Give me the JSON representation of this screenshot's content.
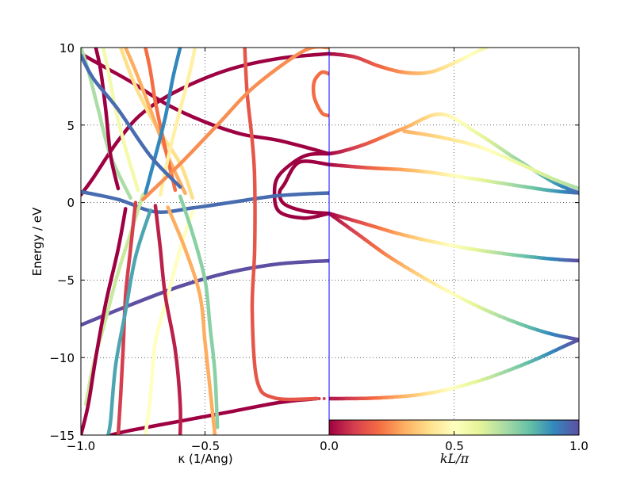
{
  "chart_data": {
    "type": "line",
    "description_of_panels": "two panels sharing energy axis",
    "ylabel": "Energy / eV",
    "ylim": [
      -15,
      10
    ],
    "yticks": [
      "10",
      "5",
      "0",
      "−5",
      "−10",
      "−15"
    ],
    "grid": true,
    "left_panel": {
      "xlabel": "κ (1/Ang)",
      "xlim": [
        -1.0,
        0.0
      ],
      "xticks": [
        "−1.0",
        "−0.5",
        "0.0"
      ]
    },
    "right_panel": {
      "xlabel": "kL/π",
      "xlim": [
        0.0,
        1.0
      ],
      "xticks": [
        "0.0",
        "0.5",
        "1.0"
      ]
    },
    "colorbar": {
      "colormap": "Spectral",
      "range": [
        0.0,
        1.0
      ],
      "colors": [
        "#9e0142",
        "#d53e4f",
        "#f46d43",
        "#fdae61",
        "#fee08b",
        "#ffffbf",
        "#e6f598",
        "#abdda4",
        "#66c2a5",
        "#3288bd",
        "#5e4fa2"
      ]
    },
    "right_series": [
      {
        "c0": 0.0,
        "c1": 0.95,
        "points": [
          [
            0.0,
            2.45
          ],
          [
            0.15,
            2.25
          ],
          [
            0.35,
            2.05
          ],
          [
            0.55,
            1.6
          ],
          [
            0.75,
            1.1
          ],
          [
            0.9,
            0.75
          ],
          [
            1.0,
            0.62
          ]
        ]
      },
      {
        "c0": 0.0,
        "c1": 0.95,
        "points": [
          [
            0.0,
            3.15
          ],
          [
            0.05,
            3.3
          ],
          [
            0.15,
            3.8
          ],
          [
            0.3,
            4.8
          ],
          [
            0.45,
            5.7
          ],
          [
            0.6,
            4.4
          ],
          [
            0.75,
            2.8
          ],
          [
            0.9,
            1.3
          ],
          [
            1.0,
            0.62
          ]
        ]
      },
      {
        "c0": 0.0,
        "c1": 1.0,
        "points": [
          [
            0.0,
            -0.7
          ],
          [
            0.15,
            -1.4
          ],
          [
            0.3,
            -2.1
          ],
          [
            0.5,
            -2.8
          ],
          [
            0.7,
            -3.3
          ],
          [
            0.9,
            -3.65
          ],
          [
            1.0,
            -3.75
          ]
        ]
      },
      {
        "c0": 0.0,
        "c1": 1.0,
        "points": [
          [
            0.0,
            -0.7
          ],
          [
            0.12,
            -2.1
          ],
          [
            0.25,
            -3.6
          ],
          [
            0.45,
            -5.5
          ],
          [
            0.65,
            -7.1
          ],
          [
            0.85,
            -8.3
          ],
          [
            1.0,
            -8.85
          ]
        ]
      },
      {
        "c0": 0.0,
        "c1": 1.0,
        "points": [
          [
            0.0,
            -12.65
          ],
          [
            0.2,
            -12.6
          ],
          [
            0.4,
            -12.3
          ],
          [
            0.6,
            -11.5
          ],
          [
            0.8,
            -10.3
          ],
          [
            0.95,
            -9.2
          ],
          [
            1.0,
            -8.85
          ]
        ]
      },
      {
        "c0": 0.0,
        "c1": 0.55,
        "points": [
          [
            0.0,
            9.6
          ],
          [
            0.1,
            9.4
          ],
          [
            0.2,
            8.8
          ],
          [
            0.3,
            8.4
          ],
          [
            0.4,
            8.4
          ],
          [
            0.5,
            9.0
          ],
          [
            0.6,
            9.8
          ],
          [
            0.63,
            10.0
          ]
        ]
      },
      {
        "c0": 0.3,
        "c1": 0.7,
        "points": [
          [
            0.3,
            4.6
          ],
          [
            0.45,
            4.2
          ],
          [
            0.6,
            3.6
          ],
          [
            0.75,
            2.6
          ],
          [
            0.9,
            1.5
          ],
          [
            1.0,
            0.9
          ]
        ]
      }
    ],
    "left_series": [
      {
        "c": 0.0,
        "points": [
          [
            0.0,
            2.45
          ],
          [
            -0.12,
            2.6
          ],
          [
            -0.18,
            1.2
          ],
          [
            -0.2,
            0.6
          ],
          [
            -0.18,
            -0.1
          ],
          [
            -0.1,
            -0.55
          ],
          [
            0.0,
            -0.7
          ]
        ]
      },
      {
        "c": 0.0,
        "points": [
          [
            0.0,
            3.15
          ],
          [
            -0.1,
            3.0
          ],
          [
            -0.2,
            1.8
          ],
          [
            -0.22,
            0.6
          ],
          [
            -0.2,
            -0.6
          ],
          [
            -0.1,
            -1.0
          ],
          [
            0.0,
            -0.7
          ]
        ]
      },
      {
        "c": 0.0,
        "points": [
          [
            0.0,
            9.6
          ],
          [
            -0.2,
            9.3
          ],
          [
            -0.4,
            8.6
          ],
          [
            -0.6,
            7.3
          ],
          [
            -0.75,
            5.8
          ],
          [
            -0.85,
            4.0
          ],
          [
            -0.95,
            1.6
          ],
          [
            -1.0,
            0.5
          ]
        ]
      },
      {
        "c": 0.0,
        "points": [
          [
            0.0,
            3.15
          ],
          [
            -0.2,
            4.0
          ],
          [
            -0.35,
            4.4
          ],
          [
            -0.5,
            5.2
          ],
          [
            -0.65,
            6.3
          ],
          [
            -0.8,
            7.8
          ],
          [
            -0.9,
            8.7
          ],
          [
            -1.0,
            9.6
          ]
        ]
      },
      {
        "c": 0.0,
        "points": [
          [
            -0.05,
            -12.65
          ],
          [
            -0.2,
            -12.9
          ],
          [
            -0.4,
            -13.5
          ],
          [
            -0.6,
            -14.1
          ],
          [
            -0.8,
            -14.7
          ],
          [
            -0.88,
            -15.0
          ]
        ]
      },
      {
        "c": 0.95,
        "points": [
          [
            0.0,
            0.62
          ],
          [
            -0.2,
            0.45
          ],
          [
            -0.4,
            0.0
          ],
          [
            -0.55,
            -0.35
          ],
          [
            -0.7,
            -0.6
          ],
          [
            -0.85,
            0.2
          ],
          [
            -1.0,
            0.7
          ]
        ]
      },
      {
        "c": 1.0,
        "points": [
          [
            0.0,
            -3.75
          ],
          [
            -0.2,
            -3.95
          ],
          [
            -0.4,
            -4.5
          ],
          [
            -0.6,
            -5.4
          ],
          [
            -0.8,
            -6.6
          ],
          [
            -1.0,
            -7.9
          ]
        ]
      },
      {
        "c": 0.15,
        "points": [
          [
            -0.34,
            10.0
          ],
          [
            -0.33,
            7.0
          ],
          [
            -0.31,
            4.0
          ],
          [
            -0.3,
            1.5
          ],
          [
            -0.3,
            -3.0
          ],
          [
            -0.31,
            -7.0
          ],
          [
            -0.29,
            -11.5
          ],
          [
            -0.22,
            -12.6
          ],
          [
            -0.05,
            -12.65
          ]
        ]
      },
      {
        "c": 0.2,
        "points": [
          [
            0.0,
            8.3
          ],
          [
            -0.03,
            8.4
          ],
          [
            -0.06,
            7.8
          ],
          [
            -0.06,
            6.8
          ],
          [
            -0.03,
            5.8
          ],
          [
            0.0,
            5.6
          ]
        ]
      },
      {
        "c": 0.65,
        "points": [
          [
            -0.75,
            0.5
          ],
          [
            -0.8,
            -2.0
          ],
          [
            -0.85,
            -4.5
          ],
          [
            -0.9,
            -7.5
          ],
          [
            -0.95,
            -10.5
          ],
          [
            -0.98,
            -13.0
          ]
        ]
      },
      {
        "c": 0.5,
        "points": [
          [
            -0.55,
            -0.6
          ],
          [
            -0.6,
            -3.0
          ],
          [
            -0.65,
            -6.0
          ],
          [
            -0.7,
            -9.0
          ],
          [
            -0.72,
            -12.5
          ],
          [
            -0.74,
            -15.0
          ]
        ]
      },
      {
        "c": 0.75,
        "points": [
          [
            -0.6,
            0.4
          ],
          [
            -0.55,
            -2.0
          ],
          [
            -0.5,
            -5.0
          ],
          [
            -0.48,
            -8.0
          ],
          [
            -0.46,
            -11.0
          ],
          [
            -0.45,
            -14.5
          ]
        ]
      },
      {
        "c": 0.3,
        "points": [
          [
            -0.65,
            -0.3
          ],
          [
            -0.58,
            -3.0
          ],
          [
            -0.52,
            -6.0
          ],
          [
            -0.5,
            -9.0
          ],
          [
            -0.48,
            -12.0
          ],
          [
            -0.46,
            -15.0
          ]
        ]
      },
      {
        "c": 0.05,
        "points": [
          [
            -0.7,
            -0.2
          ],
          [
            -0.68,
            -3.0
          ],
          [
            -0.66,
            -6.0
          ],
          [
            -0.62,
            -9.5
          ],
          [
            -0.6,
            -13.0
          ],
          [
            -0.6,
            -15.0
          ]
        ]
      },
      {
        "c": 0.1,
        "points": [
          [
            -0.78,
            0.0
          ],
          [
            -0.8,
            -3.0
          ],
          [
            -0.82,
            -6.0
          ],
          [
            -0.83,
            -9.5
          ],
          [
            -0.84,
            -12.5
          ],
          [
            -0.85,
            -15.0
          ]
        ]
      },
      {
        "c": 0.0,
        "points": [
          [
            -0.82,
            -0.4
          ],
          [
            -0.85,
            -3.0
          ],
          [
            -0.9,
            -6.5
          ],
          [
            -0.94,
            -10.0
          ],
          [
            -0.97,
            -13.0
          ],
          [
            -1.0,
            -15.0
          ]
        ]
      },
      {
        "c": 0.85,
        "points": [
          [
            -0.72,
            -0.5
          ],
          [
            -0.78,
            -3.5
          ],
          [
            -0.82,
            -7.0
          ],
          [
            -0.86,
            -10.5
          ],
          [
            -0.88,
            -14.0
          ],
          [
            -0.89,
            -15.0
          ]
        ]
      },
      {
        "c": 0.4,
        "points": [
          [
            -0.55,
            0.3
          ],
          [
            -0.6,
            2.5
          ],
          [
            -0.7,
            5.0
          ],
          [
            -0.78,
            7.5
          ],
          [
            -0.84,
            10.0
          ]
        ]
      },
      {
        "c": 0.3,
        "points": [
          [
            -0.58,
            0.6
          ],
          [
            -0.65,
            3.0
          ],
          [
            -0.72,
            6.0
          ],
          [
            -0.78,
            8.5
          ],
          [
            -0.82,
            10.0
          ]
        ]
      },
      {
        "c": 0.2,
        "points": [
          [
            -0.62,
            0.8
          ],
          [
            -0.66,
            3.5
          ],
          [
            -0.7,
            6.5
          ],
          [
            -0.72,
            8.5
          ],
          [
            -0.74,
            10.0
          ]
        ]
      },
      {
        "c": 0.7,
        "points": [
          [
            -0.8,
            0.3
          ],
          [
            -0.88,
            3.0
          ],
          [
            -0.93,
            6.0
          ],
          [
            -0.97,
            8.5
          ],
          [
            -1.0,
            10.0
          ]
        ]
      },
      {
        "c": 0.55,
        "points": [
          [
            -0.77,
            0.8
          ],
          [
            -0.82,
            3.5
          ],
          [
            -0.86,
            6.0
          ],
          [
            -0.89,
            8.5
          ],
          [
            -0.91,
            10.0
          ]
        ]
      },
      {
        "c": 0.9,
        "points": [
          [
            -0.74,
            0.6
          ],
          [
            -0.7,
            3.0
          ],
          [
            -0.66,
            5.5
          ],
          [
            -0.63,
            8.0
          ],
          [
            -0.6,
            10.0
          ]
        ]
      },
      {
        "c": 0.45,
        "points": [
          [
            -0.68,
            0.5
          ],
          [
            -0.64,
            3.5
          ],
          [
            -0.6,
            6.0
          ],
          [
            -0.56,
            8.5
          ],
          [
            -0.54,
            10.0
          ]
        ]
      },
      {
        "c": 0.25,
        "points": [
          [
            -0.75,
            0.2
          ],
          [
            -0.6,
            2.5
          ],
          [
            -0.45,
            5.0
          ],
          [
            -0.3,
            7.5
          ],
          [
            -0.1,
            9.8
          ],
          [
            0.0,
            10.0
          ]
        ]
      },
      {
        "c": 0.0,
        "points": [
          [
            -0.85,
            0.9
          ],
          [
            -0.88,
            3.0
          ],
          [
            -0.9,
            6.0
          ],
          [
            -0.92,
            8.5
          ],
          [
            -0.94,
            10.0
          ]
        ]
      },
      {
        "c": 0.95,
        "points": [
          [
            -0.6,
            1.0
          ],
          [
            -0.72,
            3.0
          ],
          [
            -0.85,
            6.0
          ],
          [
            -0.95,
            8.0
          ],
          [
            -1.0,
            9.5
          ]
        ]
      }
    ]
  }
}
